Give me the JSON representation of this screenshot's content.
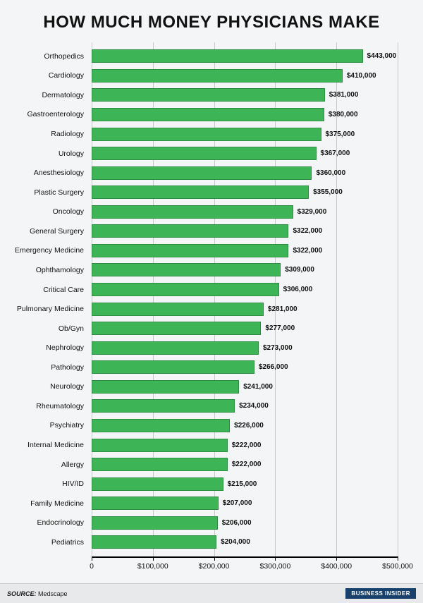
{
  "title": "HOW MUCH MONEY PHYSICIANS MAKE",
  "title_fontsize": 24,
  "chart": {
    "type": "bar-horizontal",
    "bar_color": "#3db556",
    "bar_border_color": "#2f8e42",
    "gridline_color": "#c8c9ca",
    "axis_color": "#000000",
    "background_color": "#f4f5f6",
    "xlim_max": 500000,
    "xticks": [
      {
        "v": 0,
        "label": "0"
      },
      {
        "v": 100000,
        "label": "$100,000"
      },
      {
        "v": 200000,
        "label": "$200,000"
      },
      {
        "v": 300000,
        "label": "$300,000"
      },
      {
        "v": 400000,
        "label": "$400,000"
      },
      {
        "v": 500000,
        "label": "$500,000"
      }
    ],
    "value_prefix": "$",
    "data": [
      {
        "label": "Orthopedics",
        "value": 443000,
        "display": "$443,000"
      },
      {
        "label": "Cardiology",
        "value": 410000,
        "display": "$410,000"
      },
      {
        "label": "Dermatology",
        "value": 381000,
        "display": "$381,000"
      },
      {
        "label": "Gastroenterology",
        "value": 380000,
        "display": "$380,000"
      },
      {
        "label": "Radiology",
        "value": 375000,
        "display": "$375,000"
      },
      {
        "label": "Urology",
        "value": 367000,
        "display": "$367,000"
      },
      {
        "label": "Anesthesiology",
        "value": 360000,
        "display": "$360,000"
      },
      {
        "label": "Plastic Surgery",
        "value": 355000,
        "display": "$355,000"
      },
      {
        "label": "Oncology",
        "value": 329000,
        "display": "$329,000"
      },
      {
        "label": "General Surgery",
        "value": 322000,
        "display": "$322,000"
      },
      {
        "label": "Emergency Medicine",
        "value": 322000,
        "display": "$322,000"
      },
      {
        "label": "Ophthamology",
        "value": 309000,
        "display": "$309,000"
      },
      {
        "label": "Critical Care",
        "value": 306000,
        "display": "$306,000"
      },
      {
        "label": "Pulmonary Medicine",
        "value": 281000,
        "display": "$281,000"
      },
      {
        "label": "Ob/Gyn",
        "value": 277000,
        "display": "$277,000"
      },
      {
        "label": "Nephrology",
        "value": 273000,
        "display": "$273,000"
      },
      {
        "label": "Pathology",
        "value": 266000,
        "display": "$266,000"
      },
      {
        "label": "Neurology",
        "value": 241000,
        "display": "$241,000"
      },
      {
        "label": "Rheumatology",
        "value": 234000,
        "display": "$234,000"
      },
      {
        "label": "Psychiatry",
        "value": 226000,
        "display": "$226,000"
      },
      {
        "label": "Internal Medicine",
        "value": 222000,
        "display": "$222,000"
      },
      {
        "label": "Allergy",
        "value": 222000,
        "display": "$222,000"
      },
      {
        "label": "HIV/ID",
        "value": 215000,
        "display": "$215,000"
      },
      {
        "label": "Family Medicine",
        "value": 207000,
        "display": "$207,000"
      },
      {
        "label": "Endocrinology",
        "value": 206000,
        "display": "$206,000"
      },
      {
        "label": "Pediatrics",
        "value": 204000,
        "display": "$204,000"
      }
    ]
  },
  "footer": {
    "source_label": "SOURCE:",
    "source_name": "Medscape",
    "brand": "BUSINESS INSIDER"
  }
}
